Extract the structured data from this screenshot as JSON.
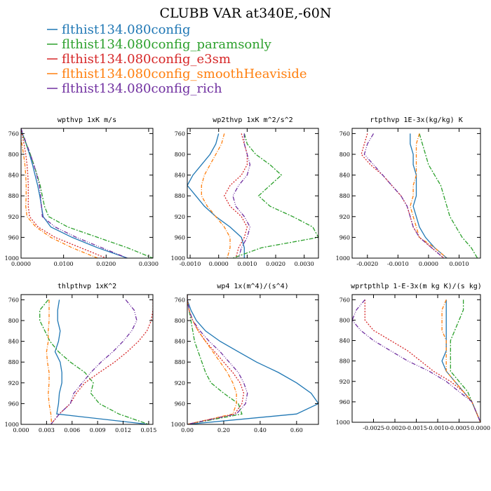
{
  "figure": {
    "title": "CLUBB VAR at340E,-60N",
    "legend": [
      {
        "label": "flthist134.080config",
        "color": "#1f77b4"
      },
      {
        "label": "flthist134.080config_paramsonly",
        "color": "#2ca02c"
      },
      {
        "label": "flthist134.080config_e3sm",
        "color": "#d62728"
      },
      {
        "label": "flthist134.080config_smoothHeaviside",
        "color": "#ff7f0e"
      },
      {
        "label": "flthist134.080config_rich",
        "color": "#7030a0"
      }
    ]
  },
  "chart_data": [
    {
      "type": "line",
      "title": "wpthvp  1xK m/s",
      "xlim": [
        0.0,
        0.031
      ],
      "ylim": [
        1000,
        750
      ],
      "xticks": [
        0.0,
        0.01,
        0.02,
        0.03
      ],
      "xtick_labels": [
        "0.0000",
        "0.0100",
        "0.0200",
        "0.0300"
      ],
      "yticks": [
        760,
        800,
        840,
        880,
        920,
        960,
        1000
      ],
      "ytick_labels": [
        "760",
        "800",
        "840",
        "880",
        "920",
        "960",
        "1000"
      ],
      "y": [
        750,
        760,
        780,
        800,
        820,
        840,
        860,
        880,
        900,
        920,
        940,
        960,
        980,
        1000
      ],
      "series": [
        {
          "name": "flthist134.080config",
          "values": [
            0.0,
            0.0003,
            0.0012,
            0.002,
            0.0027,
            0.0033,
            0.0039,
            0.0044,
            0.0048,
            0.0052,
            0.007,
            0.012,
            0.018,
            0.025
          ]
        },
        {
          "name": "flthist134.080config_paramsonly",
          "values": [
            0.0,
            0.0003,
            0.0012,
            0.0022,
            0.003,
            0.0038,
            0.0045,
            0.005,
            0.0055,
            0.0065,
            0.011,
            0.018,
            0.025,
            0.031
          ]
        },
        {
          "name": "flthist134.080config_e3sm",
          "values": [
            0.0,
            0.0002,
            0.0007,
            0.0011,
            0.0014,
            0.0016,
            0.0017,
            0.0017,
            0.0017,
            0.002,
            0.004,
            0.008,
            0.014,
            0.02
          ]
        },
        {
          "name": "flthist134.080config_smoothHeaviside",
          "values": [
            -0.0003,
            -0.0002,
            0.0002,
            0.0006,
            0.0009,
            0.0011,
            0.0012,
            0.0012,
            0.0011,
            0.0014,
            0.0035,
            0.007,
            0.012,
            0.018
          ]
        },
        {
          "name": "flthist134.080config_rich",
          "values": [
            0.0,
            0.0004,
            0.0013,
            0.0022,
            0.003,
            0.0037,
            0.0043,
            0.0046,
            0.0048,
            0.005,
            0.008,
            0.013,
            0.019,
            0.025
          ]
        }
      ]
    },
    {
      "type": "line",
      "title": "wp2thvp  1xK m^2/s^2",
      "xlim": [
        -0.0011,
        0.0035
      ],
      "ylim": [
        1000,
        750
      ],
      "xticks": [
        -0.001,
        0.0,
        0.001,
        0.002,
        0.003
      ],
      "xtick_labels": [
        "-0.0010",
        "0.0000",
        "0.0010",
        "0.0020",
        "0.0030"
      ],
      "yticks": [
        760,
        800,
        840,
        880,
        920,
        960,
        1000
      ],
      "ytick_labels": [
        "760",
        "800",
        "840",
        "880",
        "920",
        "960",
        "1000"
      ],
      "y": [
        760,
        780,
        800,
        820,
        840,
        860,
        880,
        900,
        920,
        940,
        960,
        980,
        1000
      ],
      "series": [
        {
          "name": "flthist134.080config",
          "values": [
            0.0,
            -0.0001,
            -0.0003,
            -0.0006,
            -0.0009,
            -0.0011,
            -0.0008,
            -0.0005,
            -0.0001,
            0.0004,
            0.0008,
            0.0009,
            0.0009
          ]
        },
        {
          "name": "flthist134.080config_paramsonly",
          "values": [
            0.0009,
            0.001,
            0.0013,
            0.0018,
            0.0022,
            0.0018,
            0.0014,
            0.0018,
            0.0026,
            0.0033,
            0.0035,
            0.0015,
            0.0005
          ]
        },
        {
          "name": "flthist134.080config_e3sm",
          "values": [
            0.0008,
            0.0009,
            0.001,
            0.001,
            0.0008,
            0.0004,
            0.0002,
            0.0004,
            0.0008,
            0.001,
            0.0009,
            0.0007,
            0.0006
          ]
        },
        {
          "name": "flthist134.080config_smoothHeaviside",
          "values": [
            0.0002,
            0.0001,
            -0.0001,
            -0.0003,
            -0.0005,
            -0.0006,
            -0.0006,
            -0.0004,
            -0.0001,
            0.0002,
            0.0004,
            0.0004,
            0.0003
          ]
        },
        {
          "name": "flthist134.080config_rich",
          "values": [
            0.0009,
            0.0009,
            0.001,
            0.0011,
            0.001,
            0.0007,
            0.0005,
            0.0006,
            0.0009,
            0.0011,
            0.001,
            0.0008,
            0.0007
          ]
        }
      ]
    },
    {
      "type": "line",
      "title": "rtpthvp  1E-3x(kg/kg) K",
      "xlim": [
        -0.0025,
        0.0017
      ],
      "ylim": [
        1000,
        750
      ],
      "xticks": [
        -0.002,
        -0.001,
        0.0,
        0.001
      ],
      "xtick_labels": [
        "-0.0020",
        "-0.0010",
        "0.0000",
        "0.0010"
      ],
      "yticks": [
        760,
        800,
        840,
        880,
        920,
        960,
        1000
      ],
      "ytick_labels": [
        "760",
        "800",
        "840",
        "880",
        "920",
        "960",
        "1000"
      ],
      "y": [
        760,
        780,
        800,
        820,
        840,
        860,
        880,
        900,
        920,
        940,
        960,
        980,
        1000
      ],
      "series": [
        {
          "name": "flthist134.080config",
          "values": [
            -0.0006,
            -0.0006,
            -0.0005,
            -0.0005,
            -0.0004,
            -0.0004,
            -0.0004,
            -0.0005,
            -0.0004,
            -0.0003,
            -0.0001,
            0.0002,
            0.0006
          ]
        },
        {
          "name": "flthist134.080config_paramsonly",
          "values": [
            -0.0003,
            -0.0002,
            -0.0001,
            0.0,
            0.0002,
            0.0004,
            0.0005,
            0.0006,
            0.0007,
            0.0009,
            0.0011,
            0.0014,
            0.0016
          ]
        },
        {
          "name": "flthist134.080config_e3sm",
          "values": [
            -0.002,
            -0.0021,
            -0.0022,
            -0.0019,
            -0.0015,
            -0.0012,
            -0.0009,
            -0.0007,
            -0.0006,
            -0.0005,
            -0.0003,
            0.0001,
            0.0005
          ]
        },
        {
          "name": "flthist134.080config_smoothHeaviside",
          "values": [
            -0.0003,
            -0.0004,
            -0.0004,
            -0.0004,
            -0.0004,
            -0.0005,
            -0.0005,
            -0.0006,
            -0.0005,
            -0.0004,
            -0.0003,
            0.0002,
            0.0006
          ]
        },
        {
          "name": "flthist134.080config_rich",
          "values": [
            -0.0018,
            -0.002,
            -0.0021,
            -0.0018,
            -0.0015,
            -0.0012,
            -0.0009,
            -0.0007,
            -0.0006,
            -0.0005,
            -0.0003,
            0.0001,
            0.0005
          ]
        }
      ]
    },
    {
      "type": "line",
      "title": "thlpthvp  1xK^2",
      "xlim": [
        0.0,
        0.0155
      ],
      "ylim": [
        1000,
        750
      ],
      "xticks": [
        0.0,
        0.003,
        0.006,
        0.009,
        0.012,
        0.015
      ],
      "xtick_labels": [
        "0.000",
        "0.003",
        "0.006",
        "0.009",
        "0.012",
        "0.015"
      ],
      "yticks": [
        760,
        800,
        840,
        880,
        920,
        960,
        1000
      ],
      "ytick_labels": [
        "760",
        "800",
        "840",
        "880",
        "920",
        "960",
        "1000"
      ],
      "y": [
        760,
        780,
        800,
        820,
        840,
        860,
        880,
        900,
        920,
        940,
        960,
        980,
        1000
      ],
      "series": [
        {
          "name": "flthist134.080config",
          "values": [
            0.0045,
            0.0043,
            0.0043,
            0.0046,
            0.0044,
            0.004,
            0.0046,
            0.0048,
            0.0048,
            0.0045,
            0.0044,
            0.0042,
            0.015
          ]
        },
        {
          "name": "flthist134.080config_paramsonly",
          "values": [
            0.0032,
            0.0022,
            0.0022,
            0.0028,
            0.0034,
            0.0044,
            0.0058,
            0.0075,
            0.0085,
            0.0082,
            0.0092,
            0.0115,
            0.015
          ]
        },
        {
          "name": "flthist134.080config_e3sm",
          "values": [
            0.0155,
            0.0155,
            0.0153,
            0.0148,
            0.0138,
            0.0125,
            0.011,
            0.0092,
            0.0075,
            0.0065,
            0.0058,
            0.0045,
            0.0035
          ]
        },
        {
          "name": "flthist134.080config_smoothHeaviside",
          "values": [
            0.0033,
            0.0033,
            0.0033,
            0.0032,
            0.0032,
            0.003,
            0.0031,
            0.0033,
            0.0033,
            0.0032,
            0.0033,
            0.0035,
            0.0036
          ]
        },
        {
          "name": "flthist134.080config_rich",
          "values": [
            0.0123,
            0.0133,
            0.0136,
            0.013,
            0.012,
            0.0108,
            0.0094,
            0.0082,
            0.0072,
            0.0062,
            0.0058,
            0.0045,
            0.0035
          ]
        }
      ]
    },
    {
      "type": "line",
      "title": "wp4  1x(m^4)/(s^4)",
      "xlim": [
        0.0,
        0.72
      ],
      "ylim": [
        1000,
        750
      ],
      "xticks": [
        0.0,
        0.2,
        0.4,
        0.6
      ],
      "xtick_labels": [
        "0.00",
        "0.20",
        "0.40",
        "0.60"
      ],
      "yticks": [
        760,
        800,
        840,
        880,
        920,
        960,
        1000
      ],
      "ytick_labels": [
        "760",
        "800",
        "840",
        "880",
        "920",
        "960",
        "1000"
      ],
      "y": [
        750,
        760,
        780,
        800,
        820,
        840,
        860,
        880,
        900,
        920,
        940,
        960,
        980,
        1000
      ],
      "series": [
        {
          "name": "flthist134.080config",
          "values": [
            0.0,
            0.0,
            0.02,
            0.05,
            0.1,
            0.18,
            0.28,
            0.38,
            0.5,
            0.6,
            0.68,
            0.72,
            0.6,
            0.0
          ]
        },
        {
          "name": "flthist134.080config_paramsonly",
          "values": [
            0.0,
            0.0,
            0.01,
            0.02,
            0.03,
            0.04,
            0.06,
            0.08,
            0.1,
            0.13,
            0.2,
            0.28,
            0.3,
            0.0
          ]
        },
        {
          "name": "flthist134.080config_e3sm",
          "values": [
            0.0,
            0.0,
            0.01,
            0.03,
            0.06,
            0.1,
            0.15,
            0.2,
            0.25,
            0.29,
            0.31,
            0.3,
            0.26,
            0.0
          ]
        },
        {
          "name": "flthist134.080config_smoothHeaviside",
          "values": [
            0.0,
            0.0,
            0.01,
            0.03,
            0.06,
            0.1,
            0.14,
            0.18,
            0.22,
            0.25,
            0.27,
            0.27,
            0.25,
            0.0
          ]
        },
        {
          "name": "flthist134.080config_rich",
          "values": [
            0.0,
            0.0,
            0.01,
            0.03,
            0.07,
            0.12,
            0.18,
            0.23,
            0.28,
            0.31,
            0.33,
            0.32,
            0.27,
            0.0
          ]
        }
      ]
    },
    {
      "type": "line",
      "title": "wprtpthlp  1-E-3x(m kg K)/(s kg)",
      "xlim": [
        -0.003,
        0.0
      ],
      "ylim": [
        1000,
        750
      ],
      "xticks": [
        -0.0025,
        -0.002,
        -0.0015,
        -0.001,
        -0.0005,
        0.0
      ],
      "xtick_labels": [
        "-0.0025",
        "-0.0020",
        "-0.0015",
        "-0.0010",
        "-0.0005",
        "0.0000"
      ],
      "yticks": [
        760,
        800,
        840,
        880,
        920,
        960,
        1000
      ],
      "ytick_labels": [
        "760",
        "800",
        "840",
        "880",
        "920",
        "960",
        "1000"
      ],
      "y": [
        760,
        780,
        800,
        820,
        840,
        860,
        880,
        900,
        920,
        940,
        960,
        980,
        1000
      ],
      "series": [
        {
          "name": "flthist134.080config",
          "values": [
            -0.0008,
            -0.0008,
            -0.0008,
            -0.0008,
            -0.0008,
            -0.0008,
            -0.0009,
            -0.0008,
            -0.0006,
            -0.0004,
            -0.0002,
            -0.0001,
            0.0
          ]
        },
        {
          "name": "flthist134.080config_paramsonly",
          "values": [
            -0.0004,
            -0.0004,
            -0.0005,
            -0.0006,
            -0.0007,
            -0.0007,
            -0.0007,
            -0.0007,
            -0.0005,
            -0.0003,
            -0.0002,
            -0.0001,
            0.0
          ]
        },
        {
          "name": "flthist134.080config_e3sm",
          "values": [
            -0.0027,
            -0.0027,
            -0.0027,
            -0.0025,
            -0.0021,
            -0.0017,
            -0.0014,
            -0.0011,
            -0.0007,
            -0.0004,
            -0.0002,
            -0.0001,
            0.0
          ]
        },
        {
          "name": "flthist134.080config_smoothHeaviside",
          "values": [
            -0.0008,
            -0.0009,
            -0.0009,
            -0.0009,
            -0.0008,
            -0.0008,
            -0.0008,
            -0.0008,
            -0.0006,
            -0.0004,
            -0.0002,
            -0.0001,
            0.0
          ]
        },
        {
          "name": "flthist134.080config_rich",
          "values": [
            -0.0027,
            -0.0029,
            -0.003,
            -0.0028,
            -0.0025,
            -0.0021,
            -0.0017,
            -0.0012,
            -0.0008,
            -0.0005,
            -0.0002,
            -0.0001,
            0.0
          ]
        }
      ]
    }
  ]
}
